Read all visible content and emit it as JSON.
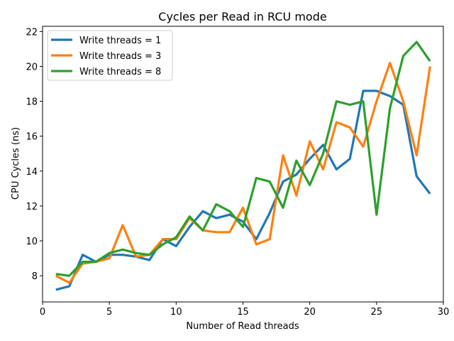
{
  "chart_data": {
    "type": "line",
    "title": "Cycles per Read in RCU mode",
    "xlabel": "Number of Read threads",
    "ylabel": "CPU Cycles (ns)",
    "xlim": [
      0,
      30
    ],
    "ylim": [
      6.5,
      22.3
    ],
    "xticks": [
      "0",
      "5",
      "10",
      "15",
      "20",
      "25",
      "30"
    ],
    "yticks": [
      "8",
      "10",
      "12",
      "14",
      "16",
      "18",
      "20",
      "22"
    ],
    "grid": false,
    "legend_position": "top-left",
    "x": [
      1,
      2,
      3,
      4,
      5,
      6,
      7,
      8,
      9,
      10,
      11,
      12,
      13,
      14,
      15,
      16,
      17,
      18,
      19,
      20,
      21,
      22,
      23,
      24,
      25,
      26,
      27,
      28,
      29
    ],
    "series": [
      {
        "name": "Write threads = 1",
        "color": "#1f77b4",
        "values": [
          7.2,
          7.4,
          9.2,
          8.8,
          9.2,
          9.2,
          9.1,
          8.9,
          10.1,
          9.7,
          10.8,
          11.7,
          11.3,
          11.5,
          11.1,
          10.1,
          11.6,
          13.4,
          13.8,
          14.7,
          15.5,
          14.1,
          14.7,
          18.6,
          18.6,
          18.3,
          17.8,
          13.7,
          12.7
        ]
      },
      {
        "name": "Write threads = 3",
        "color": "#ff7f0e",
        "values": [
          8.0,
          7.6,
          8.7,
          8.8,
          9.0,
          10.9,
          9.1,
          9.2,
          10.1,
          10.1,
          11.3,
          10.6,
          10.5,
          10.5,
          11.9,
          9.8,
          10.1,
          14.9,
          12.6,
          15.7,
          14.1,
          16.8,
          16.5,
          15.4,
          18.0,
          20.2,
          18.0,
          14.9,
          20.0
        ]
      },
      {
        "name": "Write threads = 8",
        "color": "#2ca02c",
        "values": [
          8.1,
          8.0,
          8.8,
          8.8,
          9.3,
          9.5,
          9.3,
          9.2,
          9.8,
          10.2,
          11.4,
          10.6,
          12.1,
          11.7,
          10.8,
          13.6,
          13.4,
          11.9,
          14.6,
          13.2,
          15.0,
          18.0,
          17.8,
          18.0,
          11.5,
          17.6,
          20.6,
          21.4,
          20.3
        ]
      }
    ]
  }
}
